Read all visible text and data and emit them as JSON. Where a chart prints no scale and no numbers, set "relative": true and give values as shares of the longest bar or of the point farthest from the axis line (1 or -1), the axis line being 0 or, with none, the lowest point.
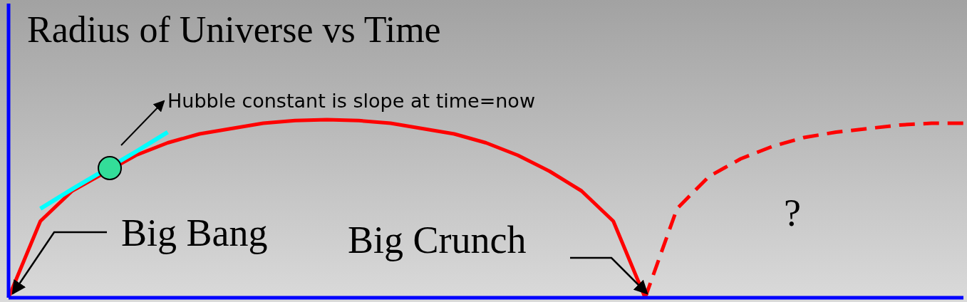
{
  "chart_data": {
    "type": "line",
    "title": "Radius of Universe vs Time",
    "relative": true,
    "marker": "none",
    "categories": [
      null,
      null,
      null,
      null,
      null,
      null,
      null,
      null,
      null,
      null,
      null,
      null,
      null,
      null,
      null,
      null,
      null,
      null,
      null,
      null,
      null,
      null,
      null,
      null,
      null,
      null,
      null,
      null,
      null,
      null,
      null
    ],
    "series": [
      {
        "color": "#ff0000",
        "line_style": "solid",
        "values": [
          0,
          0.43,
          0.6,
          null,
          0.8,
          0.87,
          0.92,
          0.95,
          0.98,
          0.995,
          1,
          0.995,
          0.98,
          0.95,
          0.92,
          0.87,
          0.8,
          0.71,
          0.6,
          0.43,
          0,
          null,
          null,
          null,
          null,
          null,
          null,
          null,
          null,
          null,
          null
        ]
      },
      {
        "color": "#ff0000",
        "line_style": "dashed",
        "values": [
          null,
          null,
          null,
          null,
          null,
          null,
          null,
          null,
          null,
          null,
          null,
          null,
          null,
          null,
          null,
          null,
          null,
          null,
          null,
          null,
          0,
          0.5,
          0.68,
          0.78,
          0.85,
          0.9,
          0.93,
          0.95,
          0.97,
          0.98,
          0.98
        ]
      },
      {
        "color": "#00ffff",
        "line_style": "solid",
        "values": [
          null,
          0.5,
          0.61,
          null,
          0.82,
          0.93,
          null,
          null,
          null,
          null,
          null,
          null,
          null,
          null,
          null,
          null,
          null,
          null,
          null,
          null,
          null,
          null,
          null,
          null,
          null,
          null,
          null,
          null,
          null,
          null,
          null
        ]
      }
    ],
    "annotations": [
      "Hubble constant is slope at time=now",
      "Big Bang",
      "Big Crunch",
      "?"
    ]
  }
}
